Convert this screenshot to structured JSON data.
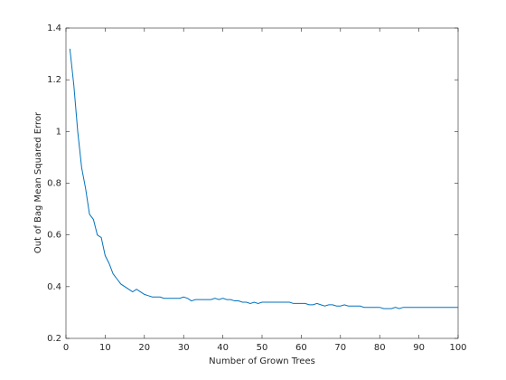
{
  "chart_data": {
    "type": "line",
    "x_label": "Number of Grown Trees",
    "y_label": "Out of Bag Mean Squared Error",
    "x": [
      1,
      2,
      3,
      4,
      5,
      6,
      7,
      8,
      9,
      10,
      11,
      12,
      13,
      14,
      15,
      16,
      17,
      18,
      19,
      20,
      21,
      22,
      23,
      24,
      25,
      26,
      27,
      28,
      29,
      30,
      31,
      32,
      33,
      34,
      35,
      36,
      37,
      38,
      39,
      40,
      41,
      42,
      43,
      44,
      45,
      46,
      47,
      48,
      49,
      50,
      51,
      52,
      53,
      54,
      55,
      56,
      57,
      58,
      59,
      60,
      61,
      62,
      63,
      64,
      65,
      66,
      67,
      68,
      69,
      70,
      71,
      72,
      73,
      74,
      75,
      76,
      77,
      78,
      79,
      80,
      81,
      82,
      83,
      84,
      85,
      86,
      87,
      88,
      89,
      90,
      91,
      92,
      93,
      94,
      95,
      96,
      97,
      98,
      99,
      100
    ],
    "series": [
      {
        "color": "#0072bd",
        "values": [
          1.32,
          1.18,
          1.0,
          0.86,
          0.78,
          0.68,
          0.66,
          0.6,
          0.59,
          0.52,
          0.49,
          0.45,
          0.43,
          0.41,
          0.4,
          0.39,
          0.38,
          0.39,
          0.38,
          0.37,
          0.365,
          0.36,
          0.36,
          0.36,
          0.355,
          0.355,
          0.355,
          0.355,
          0.355,
          0.36,
          0.355,
          0.345,
          0.35,
          0.35,
          0.35,
          0.35,
          0.35,
          0.355,
          0.35,
          0.355,
          0.35,
          0.35,
          0.345,
          0.345,
          0.34,
          0.34,
          0.335,
          0.34,
          0.335,
          0.34,
          0.34,
          0.34,
          0.34,
          0.34,
          0.34,
          0.34,
          0.34,
          0.335,
          0.335,
          0.335,
          0.335,
          0.33,
          0.33,
          0.335,
          0.33,
          0.325,
          0.33,
          0.33,
          0.325,
          0.325,
          0.33,
          0.325,
          0.325,
          0.325,
          0.325,
          0.32,
          0.32,
          0.32,
          0.32,
          0.32,
          0.315,
          0.315,
          0.315,
          0.32,
          0.315,
          0.32,
          0.32,
          0.32,
          0.32,
          0.32,
          0.32,
          0.32,
          0.32,
          0.32,
          0.32,
          0.32,
          0.32,
          0.32,
          0.32,
          0.32
        ]
      }
    ],
    "xlim": [
      0,
      100
    ],
    "xticks": [
      0,
      10,
      20,
      30,
      40,
      50,
      60,
      70,
      80,
      90,
      100
    ],
    "ylim": [
      0.2,
      1.4
    ],
    "yticks": [
      0.2,
      0.4,
      0.6,
      0.8,
      1,
      1.2,
      1.4
    ],
    "grid": false
  }
}
